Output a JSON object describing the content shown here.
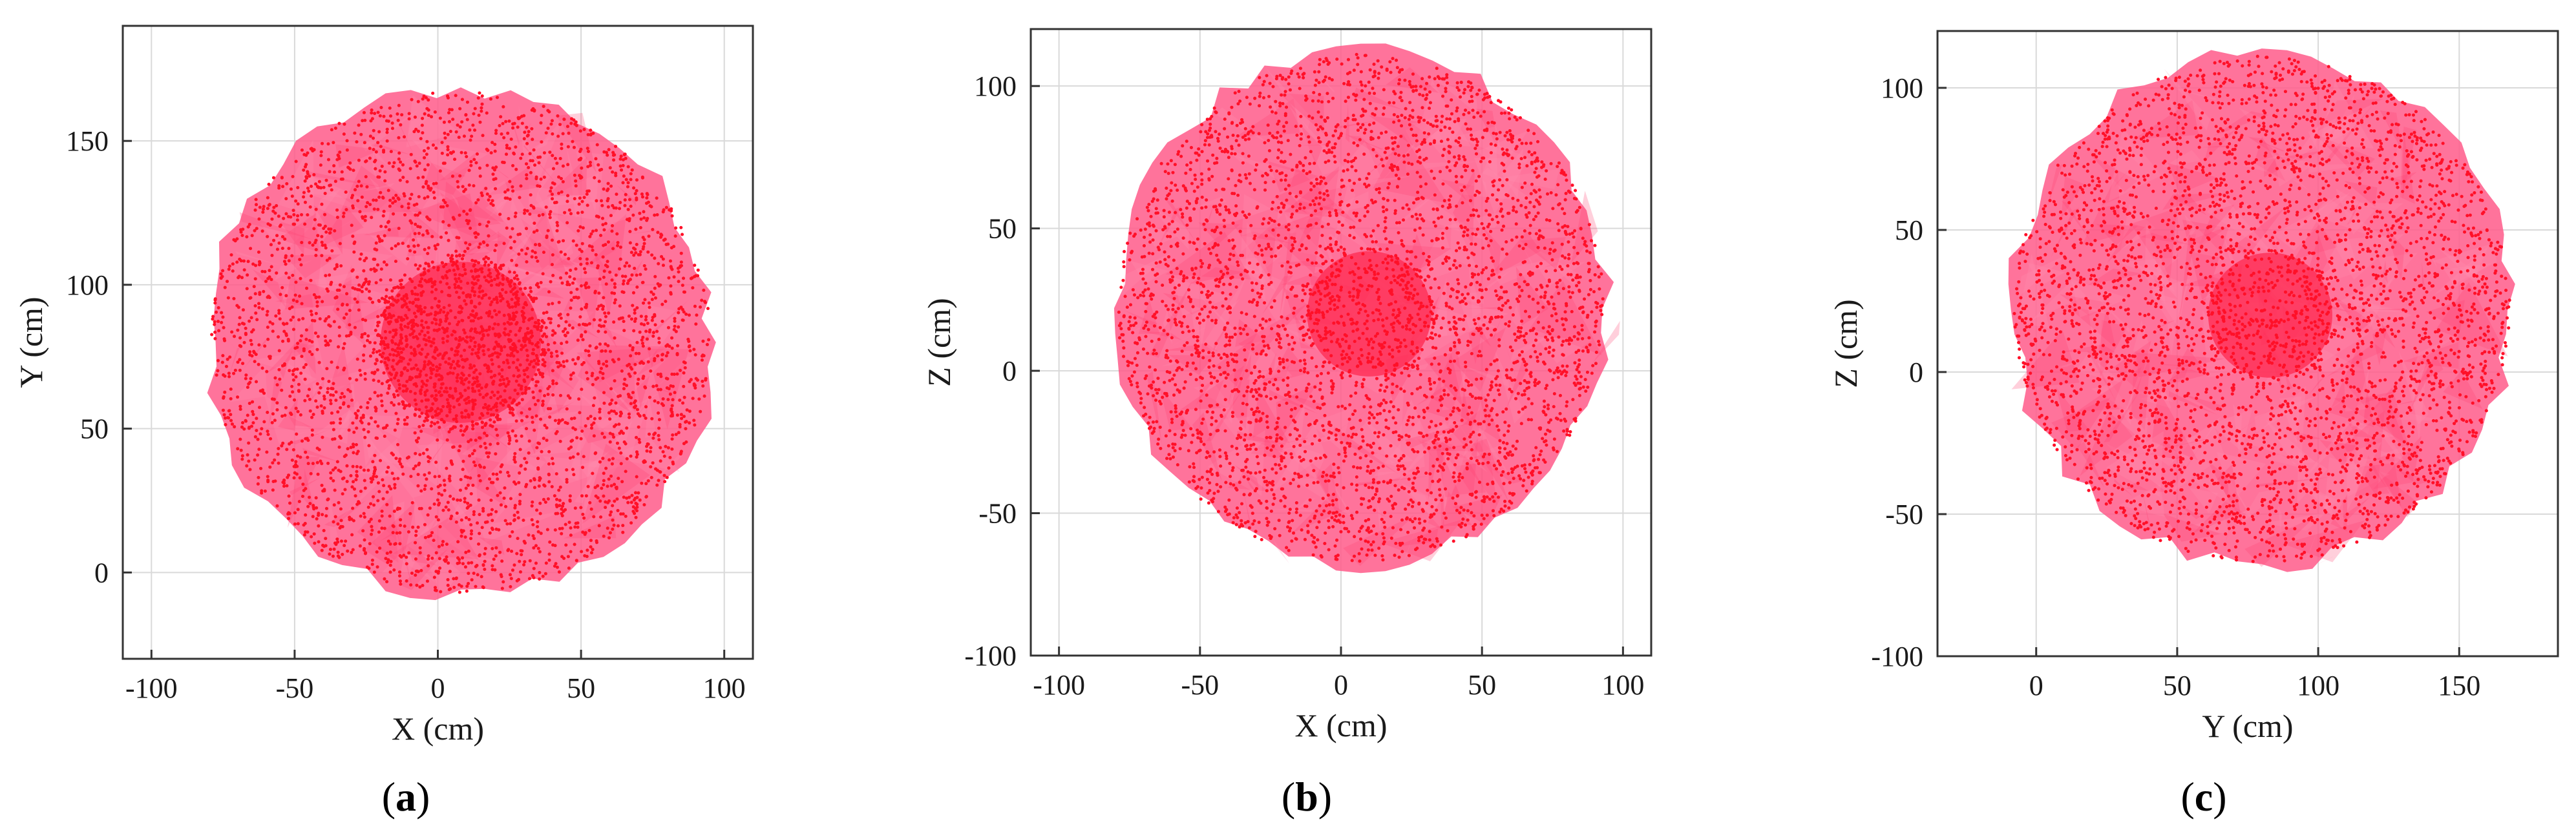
{
  "colors": {
    "cloud_fill": "#ff5a8a",
    "cloud_core": "#ff2a50",
    "point": "#ff1028",
    "grid": "#d9d9d9",
    "frame": "#333333"
  },
  "chart_data": [
    {
      "type": "scatter",
      "panel_label": "a",
      "title": "",
      "xlabel": "X (cm)",
      "ylabel": "Y (cm)",
      "xlim": [
        -110,
        110
      ],
      "ylim": [
        -30,
        190
      ],
      "xticks": [
        -100,
        -50,
        0,
        50,
        100
      ],
      "yticks": [
        0,
        50,
        100,
        150
      ],
      "grid": true,
      "series": [
        {
          "marker": "point-cloud",
          "center": [
            8,
            80
          ],
          "radius": [
            88,
            88
          ],
          "core_center": [
            8,
            80
          ],
          "core_radius": 28,
          "core_points": 900,
          "points": 3400
        }
      ]
    },
    {
      "type": "scatter",
      "panel_label": "b",
      "title": "",
      "xlabel": "X (cm)",
      "ylabel": "Z (cm)",
      "xlim": [
        -110,
        110
      ],
      "ylim": [
        -100,
        120
      ],
      "xticks": [
        -100,
        -50,
        0,
        50,
        100
      ],
      "yticks": [
        -100,
        -50,
        0,
        50,
        100
      ],
      "grid": true,
      "series": [
        {
          "marker": "point-cloud",
          "center": [
            7,
            22
          ],
          "radius": [
            87,
            90
          ],
          "core_center": [
            10,
            20
          ],
          "core_radius": 22,
          "core_points": 250,
          "points": 3600
        }
      ]
    },
    {
      "type": "scatter",
      "panel_label": "c",
      "title": "",
      "xlabel": "Y (cm)",
      "ylabel": "Z (cm)",
      "xlim": [
        -35,
        185
      ],
      "ylim": [
        -100,
        120
      ],
      "xticks": [
        0,
        50,
        100,
        150
      ],
      "yticks": [
        -100,
        -50,
        0,
        50,
        100
      ],
      "grid": true,
      "series": [
        {
          "marker": "point-cloud",
          "center": [
            80,
            22
          ],
          "radius": [
            89,
            90
          ],
          "core_center": [
            83,
            20
          ],
          "core_radius": 22,
          "core_points": 250,
          "points": 3600
        }
      ]
    }
  ]
}
